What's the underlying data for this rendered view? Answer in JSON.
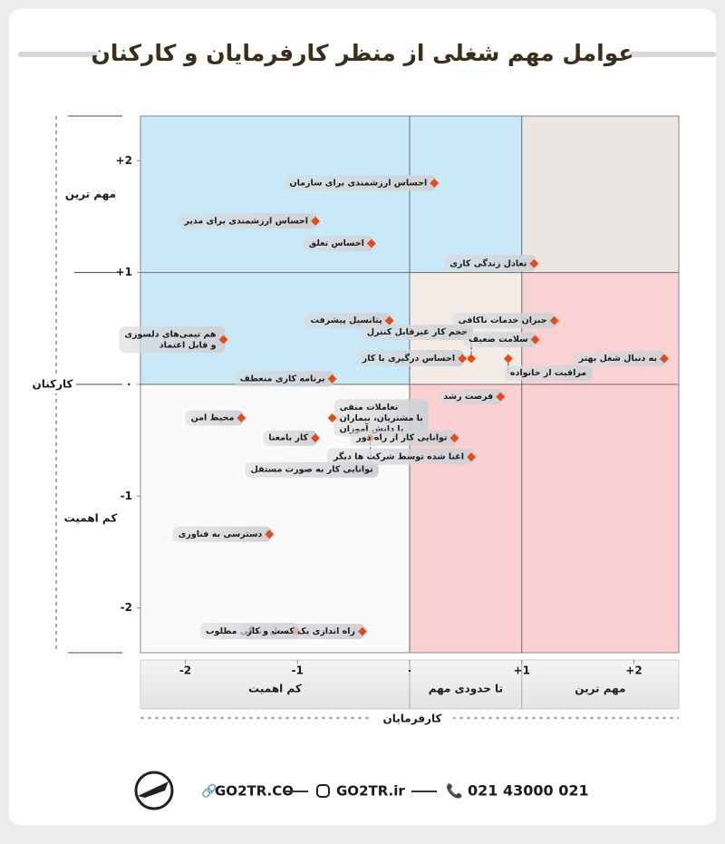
{
  "chart_data": {
    "type": "scatter",
    "title": "عوامل مهم شغلی از منظر کارفرمایان و کارکنان",
    "x_label": "کارفرمایان",
    "y_label": "کارکنان",
    "color": "#e64a19",
    "xlim": [
      -2.4,
      2.4
    ],
    "ylim": [
      -2.4,
      2.4
    ],
    "xticks": [
      -2,
      -1,
      {
        "value": 0,
        "label": "۰"
      },
      {
        "value": 1,
        "label": "+1"
      },
      {
        "value": 2,
        "label": "+2"
      }
    ],
    "yticks": [
      {
        "value": 2,
        "label": "+2"
      },
      {
        "value": 1,
        "label": "+1"
      },
      {
        "value": 0,
        "label": "۰"
      },
      -1,
      -2
    ],
    "x_bands": [
      {
        "label": "کم اهمیت",
        "range": [
          -2.4,
          0
        ]
      },
      {
        "label": "تا حدودی مهم",
        "range": [
          0,
          1
        ]
      },
      {
        "label": "مهم ترین",
        "range": [
          1,
          2.4
        ]
      }
    ],
    "y_bands": [
      {
        "label": "مهم ترین",
        "range": [
          1,
          2.4
        ]
      },
      {
        "label": "کم اهمیت",
        "range": [
          -2.4,
          0
        ]
      }
    ],
    "labels": [
      "احساس ارزشمندی برای سازمان",
      "احساس ارزشمندی برای مدیر",
      "احساس تعلق",
      "تعادل زندگی کاری",
      "پتانسیل پیشرفت",
      "هم تیمی‌های دلسوزی\nو قابل اعتماد",
      "حجم کار غیرقابل کنترل",
      "احساس درگیری با کار",
      "مراقبت از خانواده",
      "برنامه کاری منعطف",
      "جبران خدمات ناکافی",
      "سلامت ضعیف",
      "به دنبال شغل بهتر",
      "فرصت رشد",
      "محیط امن",
      "تعاملات منفی\nبا مشتریان، بیماران\nیا دانش آموزان",
      "کار بامعنا",
      "توانایی کار به صورت مستقل",
      "توانایی کار از راه دور",
      "اغنا شده توسط شرکت ها دیگر",
      "دسترسی به فناوری",
      "محل زندگی مطلوب",
      "راه اندازی یک کسب و کار"
    ],
    "x": [
      0.22,
      -0.84,
      -0.34,
      1.11,
      -0.18,
      -1.66,
      0.55,
      0.47,
      0.88,
      -0.69,
      1.29,
      1.12,
      2.27,
      0.81,
      -1.5,
      -0.69,
      -0.84,
      -0.35,
      0.4,
      0.55,
      -1.25,
      -1.01,
      -0.42
    ],
    "values": [
      1.8,
      1.46,
      1.26,
      1.08,
      0.57,
      0.4,
      0.23,
      0.23,
      0.23,
      0.05,
      0.57,
      0.4,
      0.23,
      -0.11,
      -0.3,
      -0.3,
      -0.48,
      -0.48,
      -0.48,
      -0.65,
      -1.34,
      -2.21,
      -2.21
    ],
    "footer": {
      "phone": "021 43000 021",
      "site": "GO2TR.ir",
      "domain": "GO2TR.CO"
    }
  }
}
